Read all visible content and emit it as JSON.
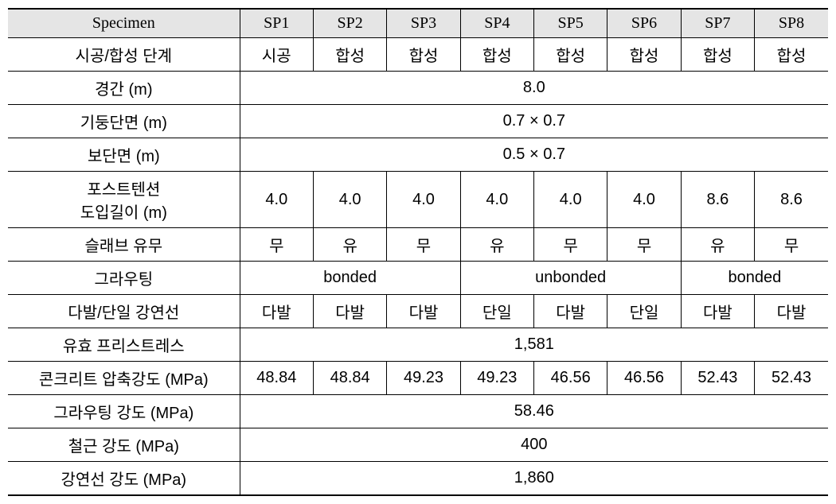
{
  "table": {
    "header": {
      "label": "Specimen",
      "columns": [
        "SP1",
        "SP2",
        "SP3",
        "SP4",
        "SP5",
        "SP6",
        "SP7",
        "SP8"
      ]
    },
    "rows": {
      "r1": {
        "label": "시공/합성 단계",
        "cells": [
          "시공",
          "합성",
          "합성",
          "합성",
          "합성",
          "합성",
          "합성",
          "합성"
        ]
      },
      "r2": {
        "label": "경간 (m)",
        "spanValue": "8.0"
      },
      "r3": {
        "label": "기둥단면 (m)",
        "spanValue": "0.7 × 0.7"
      },
      "r4": {
        "label": "보단면 (m)",
        "spanValue": "0.5 × 0.7"
      },
      "r5": {
        "label1": "포스트텐션",
        "label2": "도입길이 (m)",
        "cells": [
          "4.0",
          "4.0",
          "4.0",
          "4.0",
          "4.0",
          "4.0",
          "8.6",
          "8.6"
        ]
      },
      "r6": {
        "label": "슬래브 유무",
        "cells": [
          "무",
          "유",
          "무",
          "유",
          "무",
          "무",
          "유",
          "무"
        ]
      },
      "r7": {
        "label": "그라우팅",
        "g1": "bonded",
        "g2": "unbonded",
        "g3": "bonded"
      },
      "r8": {
        "label": "다발/단일 강연선",
        "cells": [
          "다발",
          "다발",
          "다발",
          "단일",
          "다발",
          "단일",
          "다발",
          "다발"
        ]
      },
      "r9": {
        "label": "유효 프리스트레스",
        "spanValue": "1,581"
      },
      "r10": {
        "label": "콘크리트 압축강도 (MPa)",
        "cells": [
          "48.84",
          "48.84",
          "49.23",
          "49.23",
          "46.56",
          "46.56",
          "52.43",
          "52.43"
        ]
      },
      "r11": {
        "label": "그라우팅 강도 (MPa)",
        "spanValue": "58.46"
      },
      "r12": {
        "label": "철근 강도 (MPa)",
        "spanValue": "400"
      },
      "r13": {
        "label": "강연선 강도 (MPa)",
        "spanValue": "1,860"
      }
    },
    "styles": {
      "header_bg": "#e5e5e5",
      "border_color": "#000000",
      "text_color": "#000000",
      "font_size": 20,
      "label_col_width": 290,
      "data_col_width": 92
    }
  }
}
